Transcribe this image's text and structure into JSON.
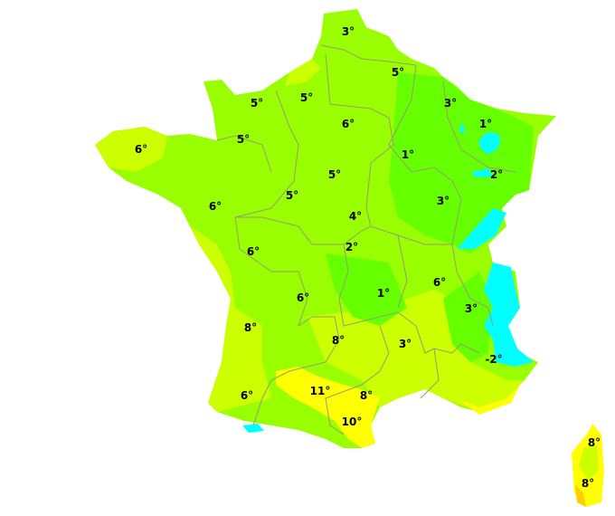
{
  "colors": {
    "cold": "#00ffff",
    "cool": "#66ff00",
    "mild": "#99ff00",
    "warm": "#ccff00",
    "hot": "#ffff00",
    "hotter": "#ffcc00",
    "borders": "#999977"
  },
  "labels": [
    "3°",
    "5°",
    "5°",
    "5°",
    "3°",
    "6°",
    "1°",
    "6°",
    "5°",
    "1°",
    "2°",
    "5°",
    "5°",
    "3°",
    "6°",
    "4°",
    "6°",
    "2°",
    "6°",
    "1°",
    "6°",
    "3°",
    "8°",
    "8°",
    "3°",
    "-2°",
    "11°",
    "6°",
    "8°",
    "10°",
    "8°",
    "8°"
  ]
}
